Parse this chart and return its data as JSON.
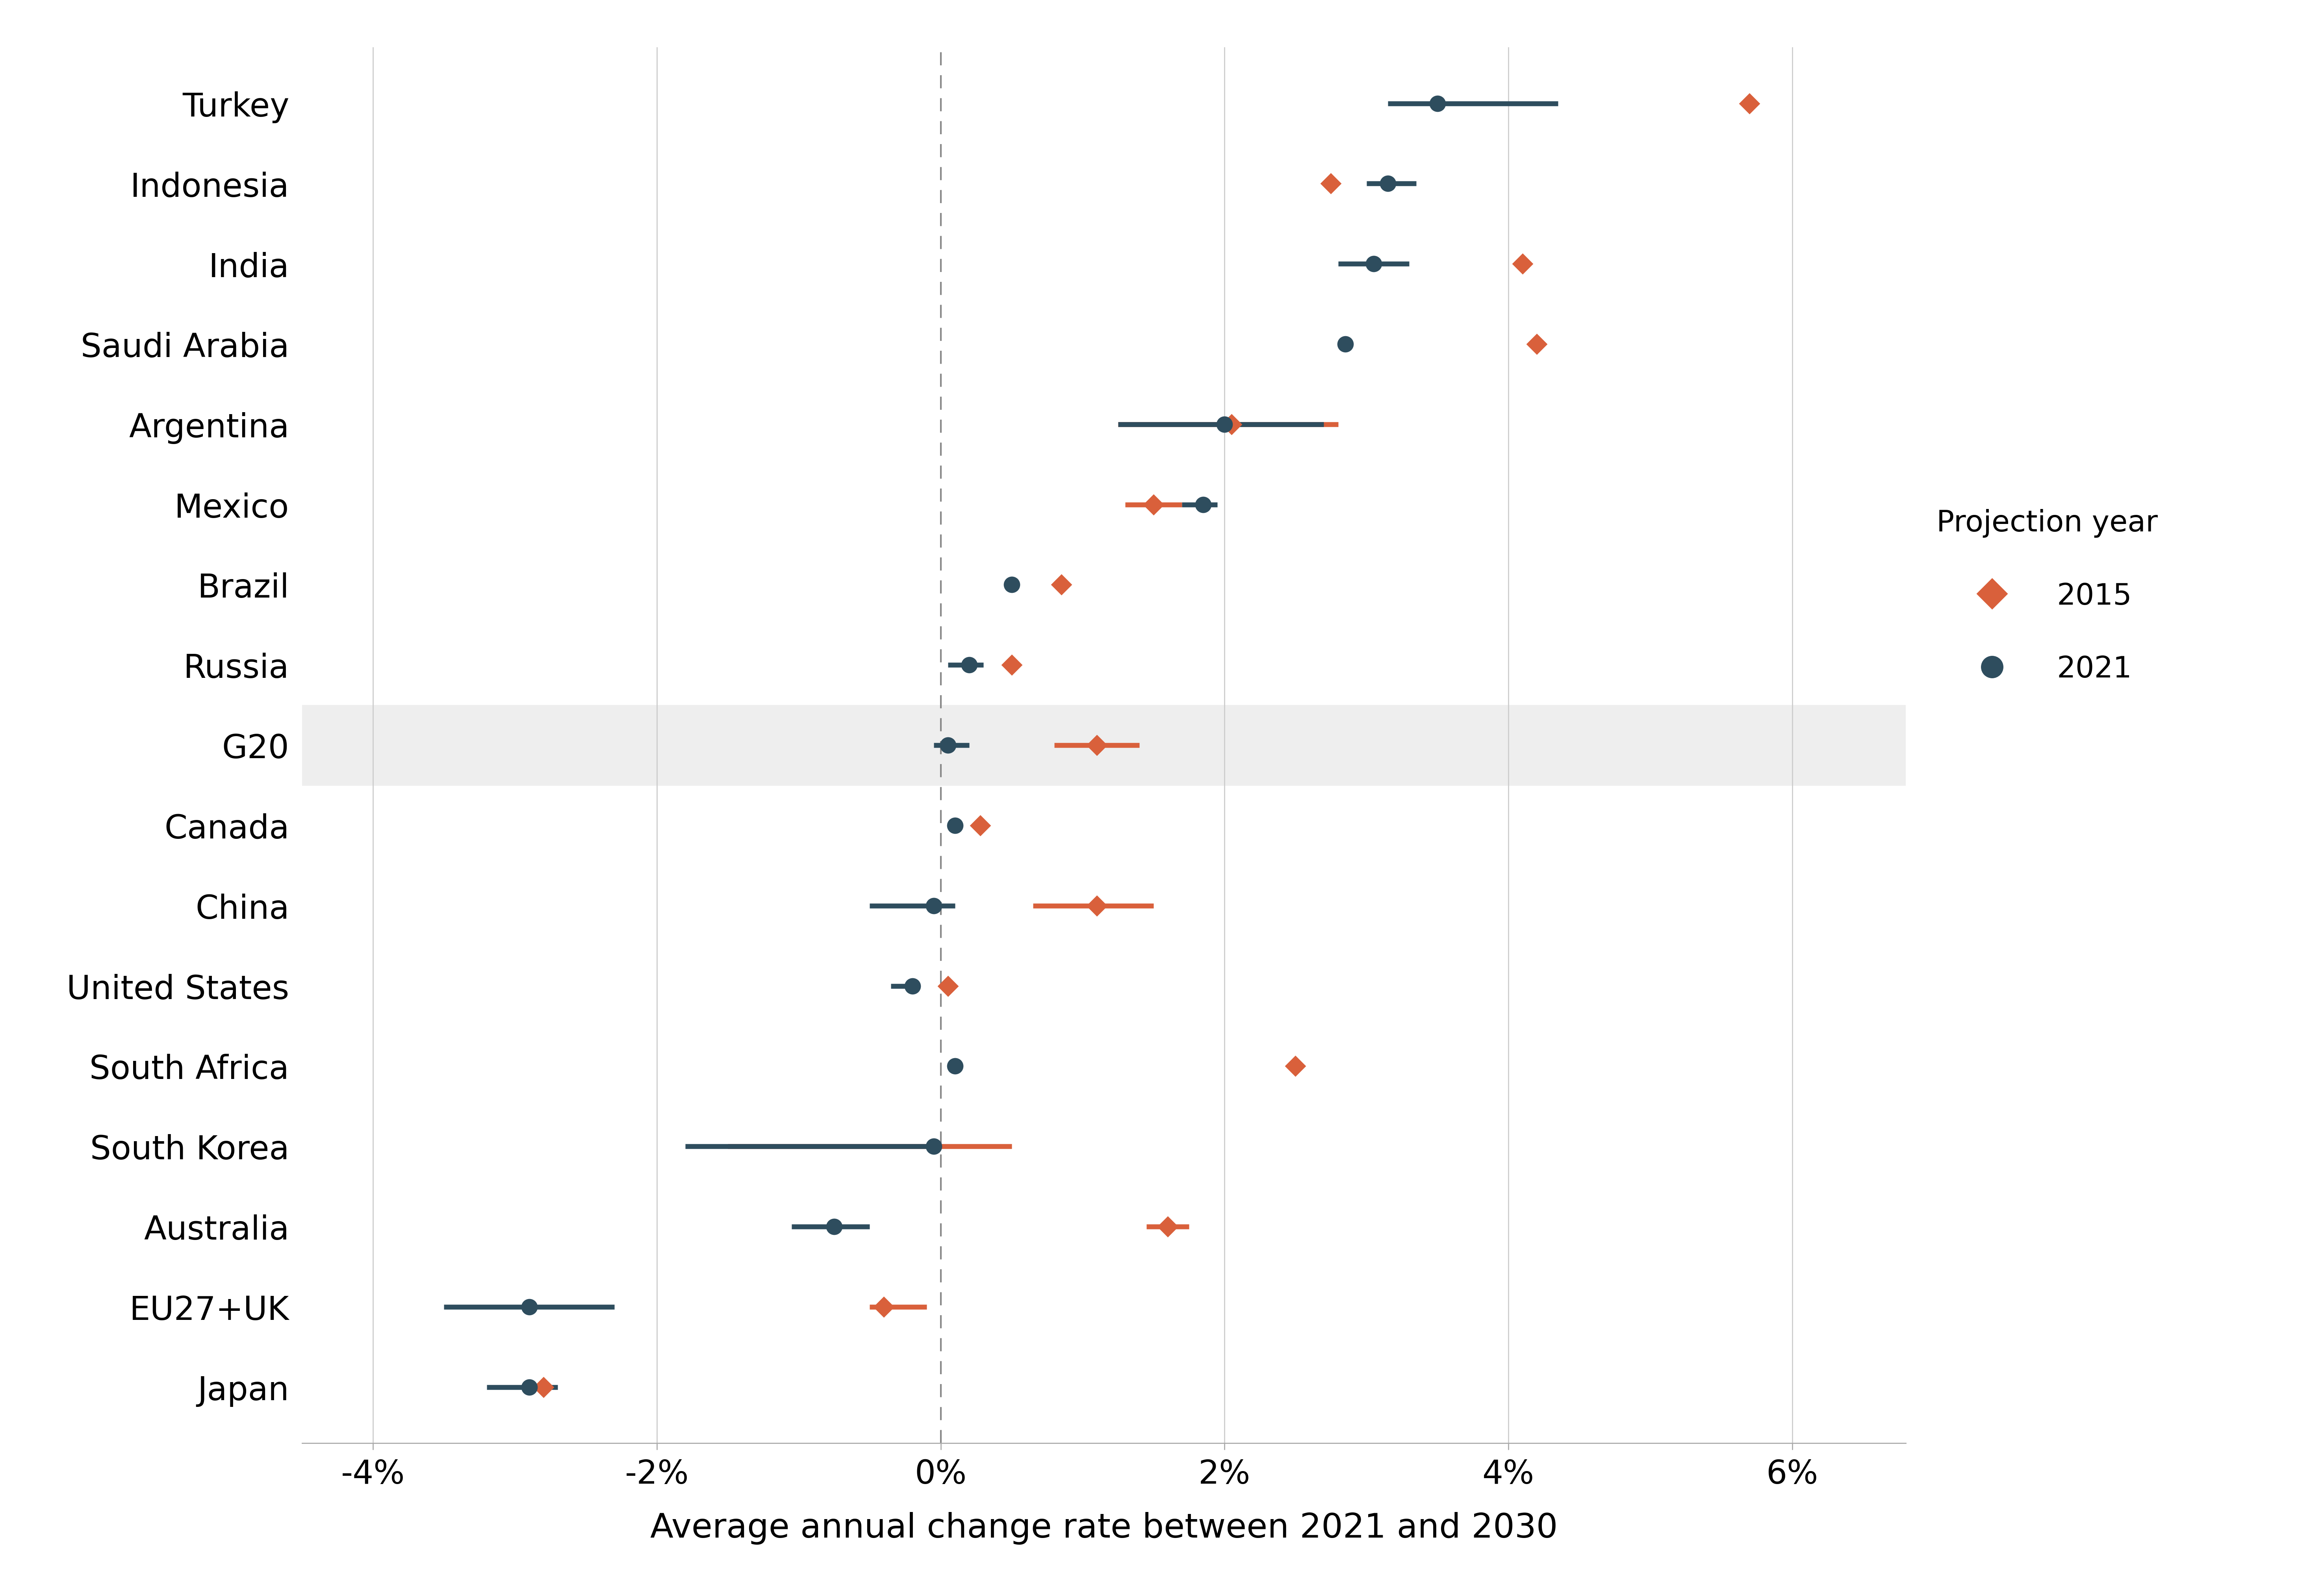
{
  "countries": [
    "Turkey",
    "Indonesia",
    "India",
    "Saudi Arabia",
    "Argentina",
    "Mexico",
    "Brazil",
    "Russia",
    "G20",
    "Canada",
    "China",
    "United States",
    "South Africa",
    "South Korea",
    "Australia",
    "EU27+UK",
    "Japan"
  ],
  "val_2021": [
    3.5,
    3.15,
    3.05,
    2.85,
    2.0,
    1.85,
    0.5,
    0.2,
    0.05,
    0.1,
    -0.05,
    -0.2,
    0.1,
    -0.05,
    -0.75,
    -2.9,
    -2.9
  ],
  "val_2015": [
    5.7,
    2.75,
    4.1,
    4.2,
    2.05,
    1.5,
    0.85,
    0.5,
    1.1,
    0.28,
    1.1,
    0.05,
    2.5,
    null,
    1.6,
    -0.4,
    -2.8
  ],
  "ci_2021_low": [
    3.15,
    3.0,
    2.8,
    null,
    1.25,
    1.7,
    null,
    0.05,
    -0.05,
    null,
    -0.5,
    -0.35,
    null,
    -1.8,
    -1.05,
    -3.5,
    -3.2
  ],
  "ci_2021_high": [
    4.35,
    3.35,
    3.3,
    null,
    2.7,
    1.95,
    null,
    0.3,
    0.2,
    null,
    0.1,
    -0.15,
    null,
    0.0,
    -0.5,
    -2.3,
    -2.7
  ],
  "ci_2015_low": [
    null,
    null,
    null,
    null,
    1.25,
    1.3,
    null,
    null,
    0.8,
    null,
    0.65,
    null,
    null,
    -1.5,
    1.45,
    -0.5,
    -2.85
  ],
  "ci_2015_high": [
    null,
    null,
    null,
    null,
    2.8,
    1.7,
    null,
    null,
    1.4,
    null,
    1.5,
    null,
    null,
    0.5,
    1.75,
    -0.1,
    -2.75
  ],
  "color_2021": "#2e4d5e",
  "color_2015": "#d9603b",
  "background_color": "#ffffff",
  "g20_band_color": "#eeeeee",
  "xlabel": "Average annual change rate between 2021 and 2030",
  "legend_title": "Projection year",
  "xlim": [
    -4.5,
    6.8
  ],
  "xticks": [
    -4,
    -2,
    0,
    2,
    4,
    6
  ],
  "xticklabels": [
    "-4%",
    "-2%",
    "0%",
    "2%",
    "4%",
    "6%"
  ]
}
